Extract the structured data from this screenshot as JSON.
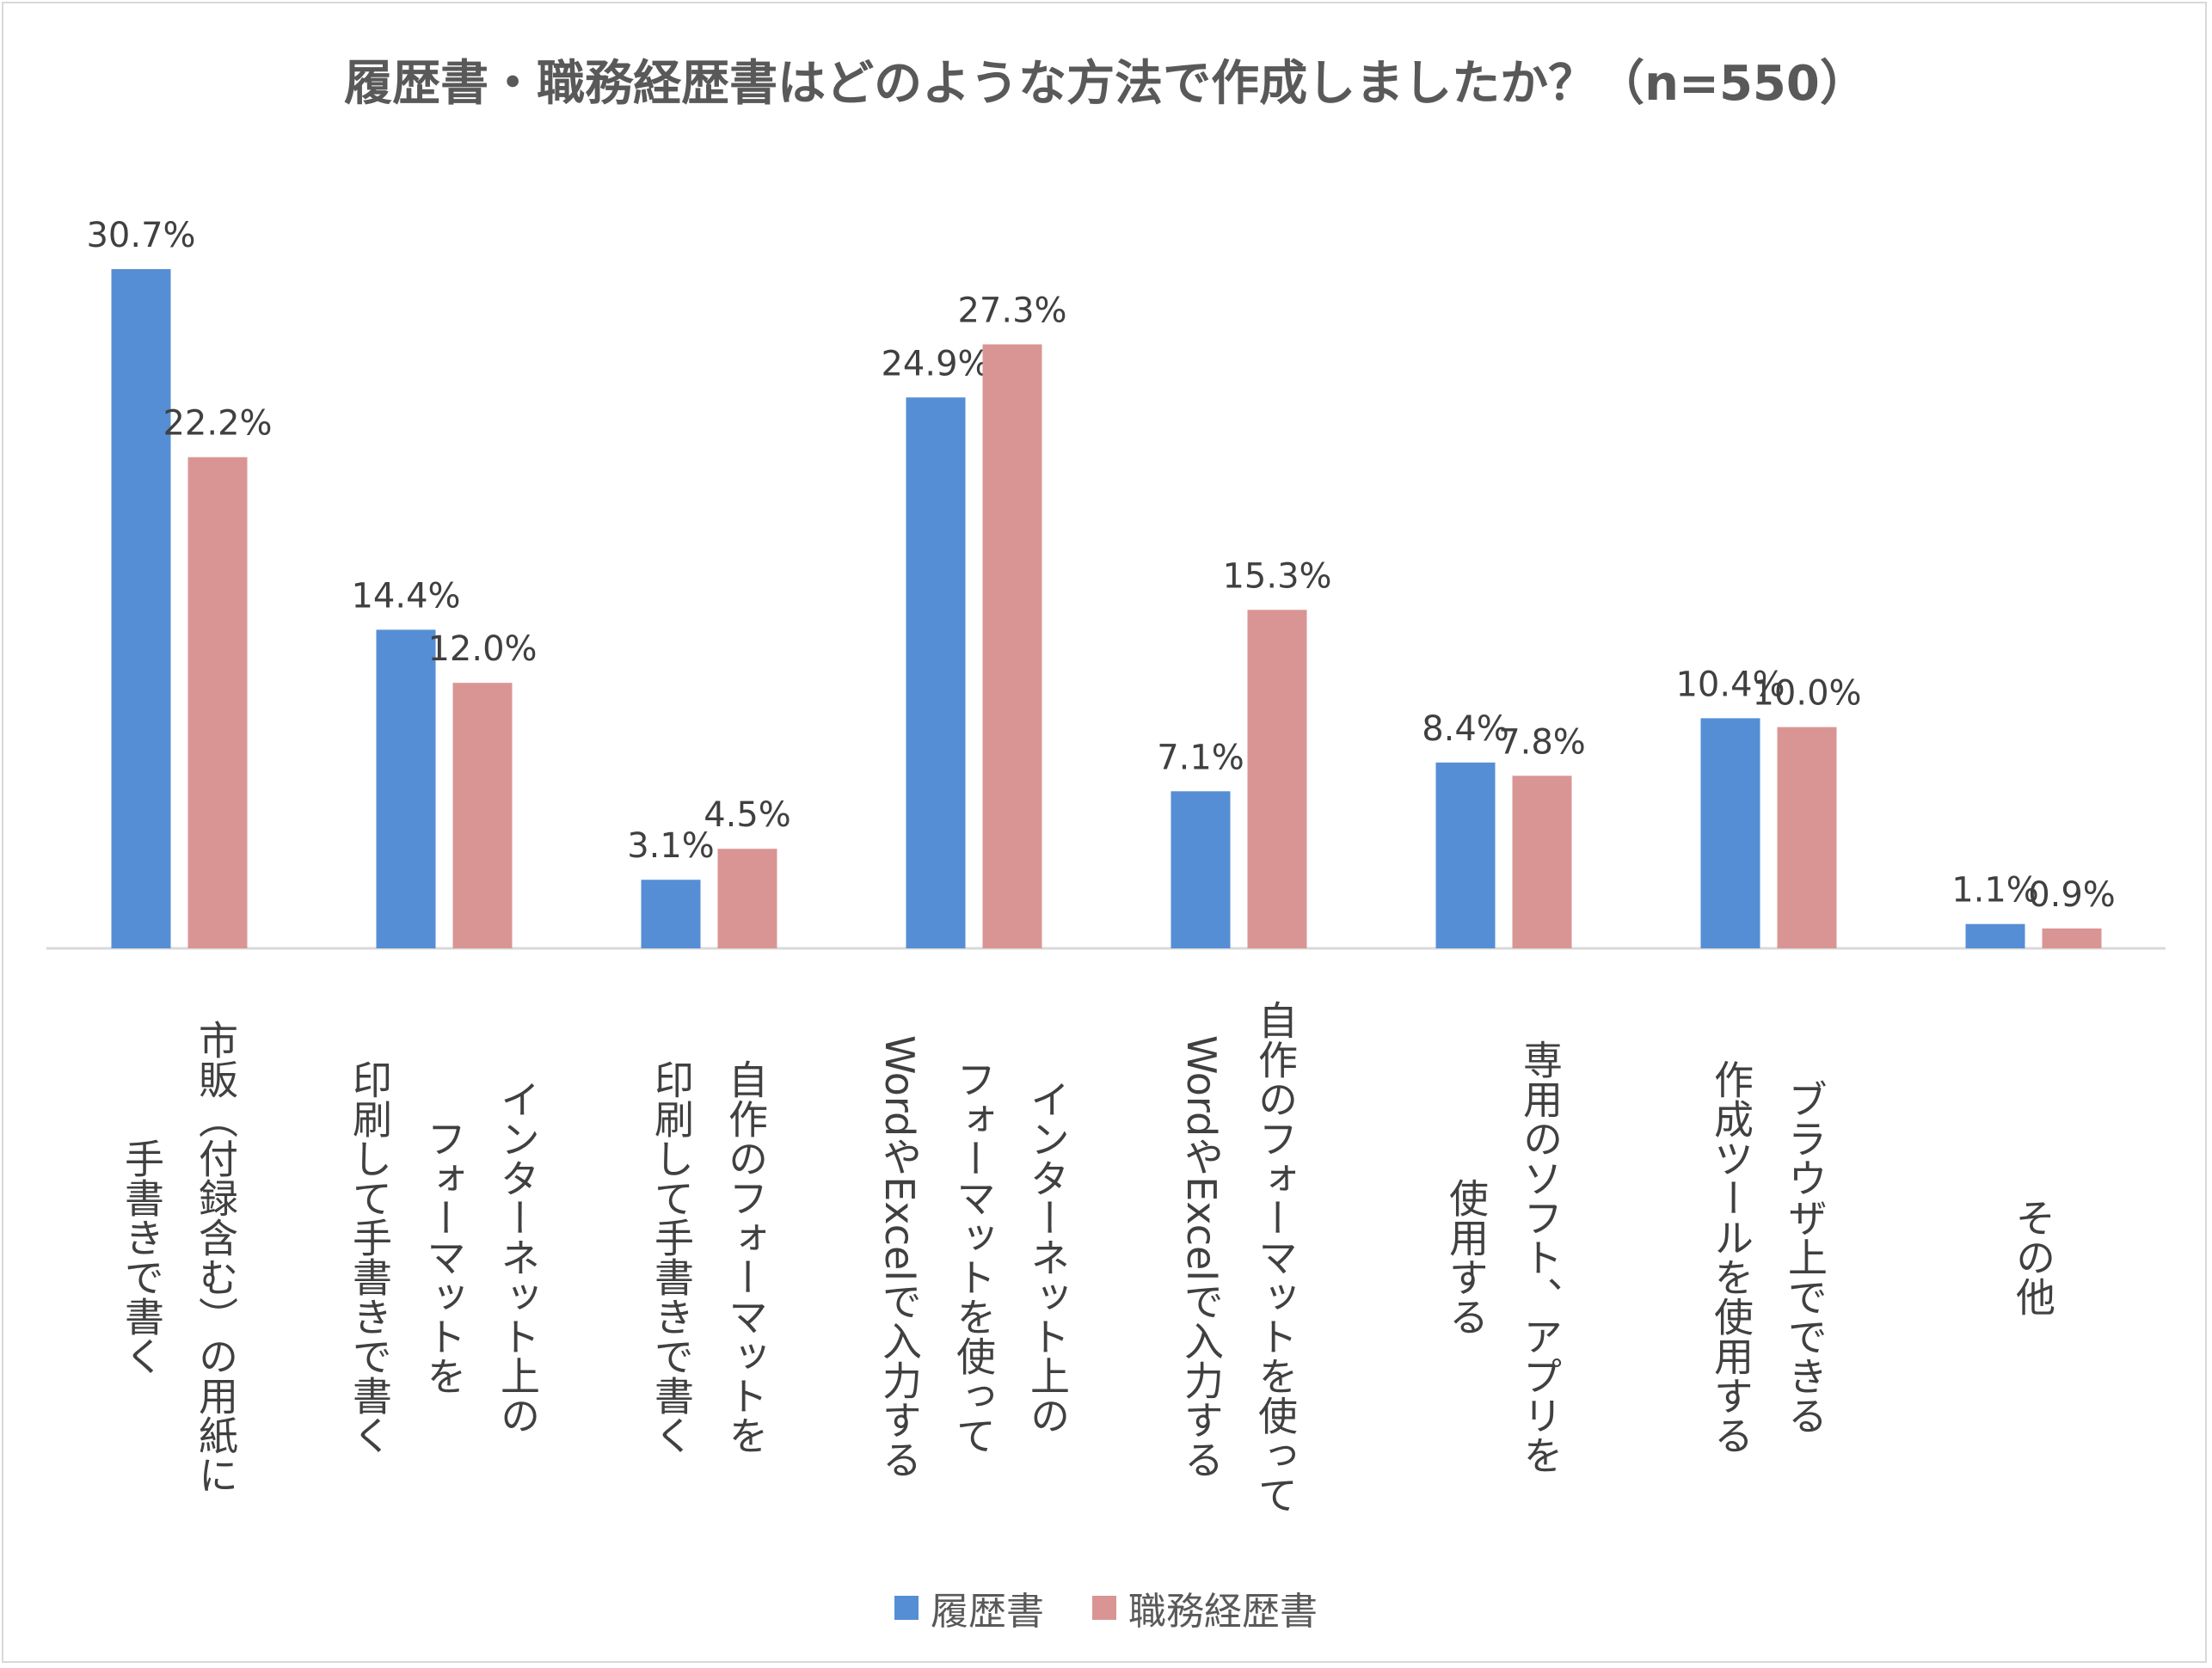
{
  "chart_data": {
    "type": "bar",
    "title": "履歴書・職務経歴書はどのような方法で作成しましたか？（n=550）",
    "categories": [
      "市販（付録含む）の用紙に\n手書きで書く",
      "インターネット上の\nフォーマットを\n印刷して手書きで書く",
      "自作のフォーマットを\n印刷して手書きで書く",
      "インターネット上の\nフォーマットを使って\nWordやExcelで入力する",
      "自作のフォーマットを使って\nWordやExcelで入力する",
      "専用のソフト、アプリを\n使用する",
      "ブラウザ上でできる\n作成ツールを使用する",
      "その他"
    ],
    "series": [
      {
        "name": "履歴書",
        "color": "#558ed5",
        "values": [
          30.7,
          14.4,
          3.1,
          24.9,
          7.1,
          8.4,
          10.4,
          1.1
        ]
      },
      {
        "name": "職務経歴書",
        "color": "#d99594",
        "values": [
          22.2,
          12.0,
          4.5,
          27.3,
          15.3,
          7.8,
          10.0,
          0.9
        ]
      }
    ],
    "value_format": "percent_1dp",
    "ylim": [
      0,
      32
    ],
    "grid": false,
    "legend": "bottom"
  }
}
